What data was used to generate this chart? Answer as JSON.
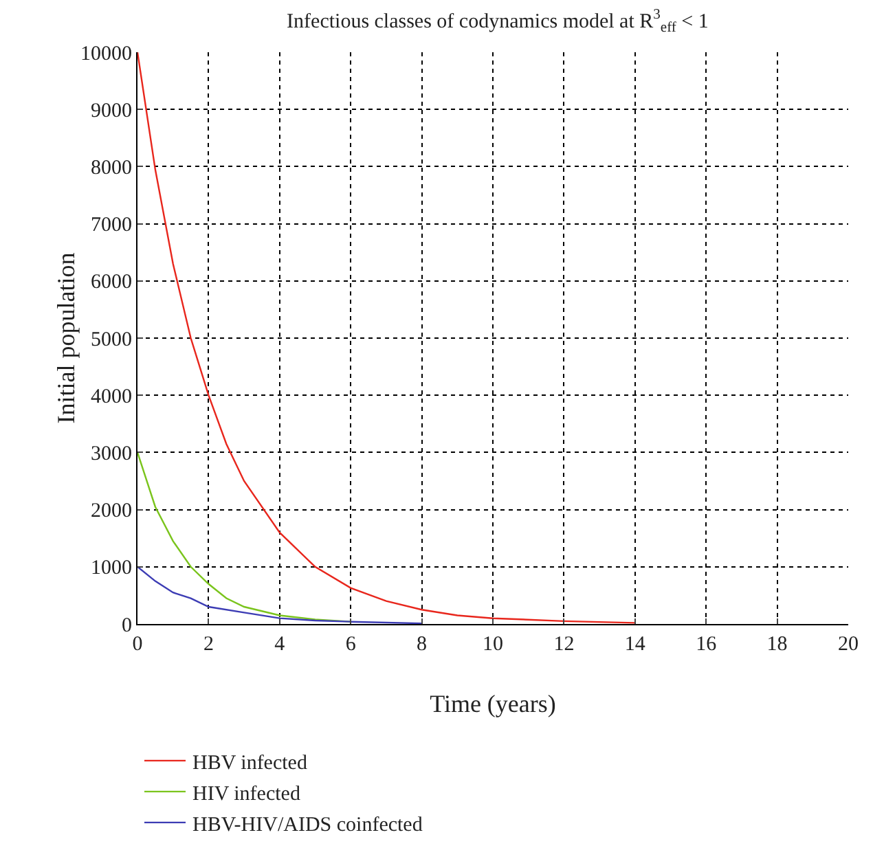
{
  "chart_data": {
    "type": "line",
    "title": "Infectious classes of codynamics model at R$^{3}$$_{eff}$ < 1",
    "xlabel": "Time (years)",
    "ylabel": "Initial population",
    "xlim": [
      0,
      20
    ],
    "xticks": [
      0,
      2,
      4,
      6,
      8,
      10,
      12,
      14,
      16,
      18,
      20
    ],
    "ylim": [
      0,
      10000
    ],
    "yticks": [
      0,
      1000,
      2000,
      3000,
      4000,
      5000,
      6000,
      7000,
      8000,
      9000,
      10000
    ],
    "grid": true,
    "legend": "bottom",
    "marker": "none",
    "line_style": "solid",
    "series": [
      {
        "name": "HBV infected",
        "color": "#e8261c",
        "x": [
          0,
          0.5,
          1,
          1.5,
          2,
          2.5,
          3,
          4,
          5,
          6,
          7,
          8,
          9,
          10,
          12,
          14
        ],
        "values": [
          10000,
          7950,
          6300,
          5000,
          4000,
          3150,
          2500,
          1600,
          1000,
          630,
          400,
          250,
          150,
          100,
          50,
          20
        ]
      },
      {
        "name": "HIV infected",
        "color": "#7ac41c",
        "x": [
          0,
          0.5,
          1,
          1.5,
          2,
          2.5,
          3,
          4,
          5,
          6
        ],
        "values": [
          3000,
          2050,
          1450,
          1000,
          700,
          450,
          300,
          150,
          80,
          40
        ]
      },
      {
        "name": "HBV-HIV/AIDS coinfected",
        "color": "#3c3cb4",
        "x": [
          0,
          0.5,
          1,
          1.5,
          2,
          3,
          4,
          5,
          6,
          8
        ],
        "values": [
          1000,
          750,
          550,
          450,
          300,
          200,
          100,
          60,
          40,
          10
        ]
      }
    ]
  }
}
